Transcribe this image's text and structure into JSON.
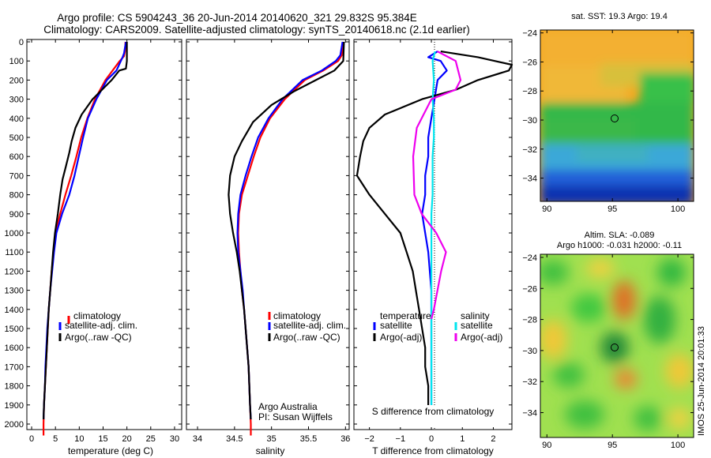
{
  "header": {
    "title_line1": "Argo profile: CS 5904243_36 20-Jun-2014 20140620_321 29.832S 95.384E",
    "title_line2": "Climatology: CARS2009. Satellite-adjusted climatology: synTS_20140618.nc (2.1d earlier)"
  },
  "credits": {
    "line1": "Argo Australia",
    "line2": "PI: Susan Wijffels"
  },
  "side_text": "IMOS 25-Jun-2014 20:01:33",
  "colors": {
    "climatology": "#ff0000",
    "satellite": "#0000ff",
    "argo": "#000000",
    "sat_salinity": "#00e5ee",
    "argo_salinity": "#ee00ee"
  },
  "chart_data": [
    {
      "type": "line",
      "xlabel": "temperature (deg C)",
      "ylabel": "",
      "xlim": [
        -1,
        31.5
      ],
      "ylim": [
        2060,
        0
      ],
      "xticks": [
        0,
        5,
        10,
        15,
        20,
        25,
        30
      ],
      "yticks": [
        0,
        100,
        200,
        300,
        400,
        500,
        600,
        700,
        800,
        900,
        1000,
        1100,
        1200,
        1300,
        1400,
        1500,
        1600,
        1700,
        1800,
        1900,
        2000
      ],
      "legend": [
        "climatology",
        "satellite-adj. clim.",
        "Argo(..raw -QC)"
      ],
      "series": [
        {
          "name": "climatology",
          "color": "#ff0000",
          "points": [
            [
              19.7,
              0
            ],
            [
              19.6,
              50
            ],
            [
              19.4,
              75
            ],
            [
              18.5,
              100
            ],
            [
              15.5,
              200
            ],
            [
              13.3,
              300
            ],
            [
              11.7,
              400
            ],
            [
              10.4,
              500
            ],
            [
              9.4,
              600
            ],
            [
              8.3,
              700
            ],
            [
              7.1,
              800
            ],
            [
              6.0,
              900
            ],
            [
              5.0,
              1000
            ],
            [
              4.6,
              1100
            ],
            [
              4.2,
              1200
            ],
            [
              3.9,
              1300
            ],
            [
              3.6,
              1400
            ],
            [
              3.4,
              1500
            ],
            [
              3.2,
              1600
            ],
            [
              3.0,
              1700
            ],
            [
              2.8,
              1800
            ],
            [
              2.6,
              1900
            ],
            [
              2.5,
              2000
            ],
            [
              2.5,
              2060
            ]
          ]
        },
        {
          "name": "satellite-adj. clim.",
          "color": "#0000ff",
          "points": [
            [
              19.8,
              0
            ],
            [
              19.4,
              60
            ],
            [
              19.1,
              80
            ],
            [
              17.8,
              150
            ],
            [
              15.8,
              200
            ],
            [
              13.6,
              300
            ],
            [
              11.8,
              400
            ],
            [
              10.8,
              500
            ],
            [
              9.9,
              600
            ],
            [
              9.0,
              700
            ],
            [
              7.9,
              800
            ],
            [
              6.4,
              900
            ],
            [
              5.2,
              1000
            ],
            [
              4.7,
              1100
            ],
            [
              4.3,
              1200
            ],
            [
              3.9,
              1300
            ],
            [
              3.6,
              1400
            ],
            [
              3.3,
              1500
            ],
            [
              3.1,
              1600
            ],
            [
              2.9,
              1700
            ],
            [
              2.8,
              1800
            ],
            [
              2.6,
              1900
            ],
            [
              2.5,
              1975
            ]
          ]
        },
        {
          "name": "Argo(..raw -QC)",
          "color": "#000000",
          "points": [
            [
              20.0,
              0
            ],
            [
              20.0,
              100
            ],
            [
              19.8,
              140
            ],
            [
              18.4,
              150
            ],
            [
              16.8,
              200
            ],
            [
              14.8,
              250
            ],
            [
              12.8,
              300
            ],
            [
              10.5,
              380
            ],
            [
              9.2,
              450
            ],
            [
              8.4,
              520
            ],
            [
              7.9,
              580
            ],
            [
              7.2,
              650
            ],
            [
              6.5,
              720
            ],
            [
              6.0,
              800
            ],
            [
              5.5,
              900
            ],
            [
              4.9,
              1000
            ],
            [
              4.5,
              1100
            ],
            [
              4.2,
              1200
            ],
            [
              3.9,
              1300
            ],
            [
              3.6,
              1400
            ],
            [
              3.4,
              1500
            ],
            [
              3.2,
              1600
            ],
            [
              3.0,
              1700
            ],
            [
              2.8,
              1800
            ],
            [
              2.6,
              1900
            ],
            [
              2.5,
              1975
            ]
          ]
        }
      ]
    },
    {
      "type": "line",
      "xlabel": "salinity",
      "ylabel": "",
      "xlim": [
        33.85,
        36.05
      ],
      "ylim": [
        2060,
        0
      ],
      "xticks": [
        34,
        34.5,
        35,
        35.5,
        36
      ],
      "legend": [
        "climatology",
        "satellite-adj. clim.",
        "Argo(..raw -QC)"
      ],
      "series": [
        {
          "name": "climatology",
          "color": "#ff0000",
          "points": [
            [
              35.97,
              0
            ],
            [
              35.95,
              70
            ],
            [
              35.9,
              100
            ],
            [
              35.7,
              150
            ],
            [
              35.45,
              200
            ],
            [
              35.18,
              300
            ],
            [
              34.98,
              400
            ],
            [
              34.85,
              500
            ],
            [
              34.76,
              600
            ],
            [
              34.68,
              700
            ],
            [
              34.6,
              800
            ],
            [
              34.56,
              900
            ],
            [
              34.55,
              1000
            ],
            [
              34.56,
              1100
            ],
            [
              34.58,
              1200
            ],
            [
              34.6,
              1300
            ],
            [
              34.63,
              1400
            ],
            [
              34.65,
              1500
            ],
            [
              34.67,
              1600
            ],
            [
              34.69,
              1700
            ],
            [
              34.7,
              1800
            ],
            [
              34.71,
              1900
            ],
            [
              34.72,
              2000
            ],
            [
              34.72,
              2060
            ]
          ]
        },
        {
          "name": "satellite-adj. clim.",
          "color": "#0000ff",
          "points": [
            [
              35.96,
              0
            ],
            [
              35.93,
              70
            ],
            [
              35.87,
              100
            ],
            [
              35.68,
              150
            ],
            [
              35.42,
              200
            ],
            [
              35.15,
              300
            ],
            [
              34.96,
              400
            ],
            [
              34.82,
              500
            ],
            [
              34.73,
              600
            ],
            [
              34.65,
              700
            ],
            [
              34.58,
              800
            ],
            [
              34.55,
              900
            ],
            [
              34.54,
              1000
            ],
            [
              34.55,
              1100
            ],
            [
              34.58,
              1200
            ],
            [
              34.61,
              1300
            ],
            [
              34.63,
              1400
            ],
            [
              34.65,
              1500
            ],
            [
              34.67,
              1600
            ],
            [
              34.69,
              1700
            ],
            [
              34.7,
              1800
            ],
            [
              34.71,
              1900
            ],
            [
              34.72,
              1975
            ]
          ]
        },
        {
          "name": "Argo(..raw -QC)",
          "color": "#000000",
          "points": [
            [
              35.98,
              0
            ],
            [
              35.97,
              100
            ],
            [
              35.85,
              150
            ],
            [
              35.6,
              200
            ],
            [
              35.3,
              260
            ],
            [
              35.0,
              330
            ],
            [
              34.75,
              420
            ],
            [
              34.6,
              520
            ],
            [
              34.5,
              600
            ],
            [
              34.44,
              700
            ],
            [
              34.42,
              800
            ],
            [
              34.44,
              900
            ],
            [
              34.48,
              1000
            ],
            [
              34.53,
              1100
            ],
            [
              34.57,
              1200
            ],
            [
              34.6,
              1300
            ],
            [
              34.63,
              1400
            ],
            [
              34.65,
              1500
            ],
            [
              34.67,
              1600
            ],
            [
              34.69,
              1700
            ],
            [
              34.7,
              1800
            ],
            [
              34.71,
              1900
            ],
            [
              34.72,
              1975
            ]
          ]
        }
      ]
    },
    {
      "type": "line",
      "xlabel": "T difference from climatology",
      "top_axis_label": "S difference from climatology",
      "xlim": [
        -2.5,
        2.6
      ],
      "ylim": [
        2060,
        0
      ],
      "xticks": [
        -2,
        -1,
        0,
        1,
        2
      ],
      "top_xticks": [
        -0.5,
        -0.25,
        0,
        0.25,
        0.5
      ],
      "top_xlim": [
        -0.6375,
        0.6625
      ],
      "legend_headers": [
        "temperature",
        "salinity"
      ],
      "legend": [
        "satellite",
        "Argo(-adj)",
        "satellite",
        "Argo(-adj)"
      ],
      "series": [
        {
          "name": "satellite",
          "color": "#0000ff",
          "points": [
            [
              0.2,
              50
            ],
            [
              -0.1,
              80
            ],
            [
              0.3,
              100
            ],
            [
              0.5,
              150
            ],
            [
              0.2,
              200
            ],
            [
              0.1,
              300
            ],
            [
              0.0,
              400
            ],
            [
              -0.1,
              500
            ],
            [
              -0.1,
              600
            ],
            [
              -0.2,
              700
            ],
            [
              -0.2,
              800
            ],
            [
              -0.3,
              900
            ],
            [
              -0.2,
              1000
            ],
            [
              -0.1,
              1100
            ],
            [
              0.0,
              1300
            ],
            [
              0.0,
              1500
            ],
            [
              0.0,
              1700
            ],
            [
              0.0,
              1900
            ],
            [
              0.0,
              1975
            ]
          ]
        },
        {
          "name": "Argo(-adj)",
          "color": "#000000",
          "points": [
            [
              0.3,
              50
            ],
            [
              1.5,
              80
            ],
            [
              2.6,
              120
            ],
            [
              2.5,
              150
            ],
            [
              1.5,
              200
            ],
            [
              0.8,
              250
            ],
            [
              -0.3,
              300
            ],
            [
              -1.5,
              380
            ],
            [
              -2.0,
              450
            ],
            [
              -2.2,
              520
            ],
            [
              -2.3,
              600
            ],
            [
              -2.4,
              700
            ],
            [
              -2.0,
              800
            ],
            [
              -1.5,
              900
            ],
            [
              -1.0,
              1000
            ],
            [
              -0.8,
              1100
            ],
            [
              -0.6,
              1200
            ],
            [
              -0.5,
              1300
            ],
            [
              -0.4,
              1400
            ],
            [
              -0.3,
              1500
            ],
            [
              -0.2,
              1600
            ],
            [
              -0.2,
              1700
            ],
            [
              -0.1,
              1800
            ],
            [
              -0.1,
              1900
            ],
            [
              0.0,
              1975
            ]
          ]
        },
        {
          "name": "satellite",
          "axis": "top",
          "color": "#00e5ee",
          "points": [
            [
              0.03,
              50
            ],
            [
              0.01,
              100
            ],
            [
              0.02,
              200
            ],
            [
              0.01,
              300
            ],
            [
              0.02,
              400
            ],
            [
              0.02,
              500
            ],
            [
              0.01,
              600
            ],
            [
              0.01,
              700
            ],
            [
              0.01,
              800
            ],
            [
              0.0,
              900
            ],
            [
              0.0,
              1000
            ],
            [
              0.0,
              1100
            ],
            [
              0.0,
              1200
            ],
            [
              0.0,
              1300
            ],
            [
              0.0,
              1500
            ],
            [
              0.0,
              1700
            ],
            [
              0.0,
              1900
            ],
            [
              0.0,
              1975
            ]
          ]
        },
        {
          "name": "Argo(-adj)",
          "axis": "top",
          "color": "#ee00ee",
          "points": [
            [
              0.05,
              50
            ],
            [
              0.2,
              100
            ],
            [
              0.24,
              200
            ],
            [
              0.2,
              250
            ],
            [
              0.0,
              300
            ],
            [
              -0.12,
              450
            ],
            [
              -0.15,
              600
            ],
            [
              -0.14,
              800
            ],
            [
              -0.08,
              900
            ],
            [
              0.04,
              1000
            ],
            [
              0.12,
              1100
            ],
            [
              0.08,
              1200
            ],
            [
              0.05,
              1300
            ],
            [
              0.02,
              1400
            ],
            [
              0.0,
              1450
            ]
          ]
        }
      ]
    },
    {
      "type": "heatmap",
      "title": "sat. SST: 19.3 Argo: 19.4",
      "xlim": [
        89.5,
        101.2
      ],
      "ylim": [
        -35.6,
        -23.8
      ],
      "xticks": [
        90,
        95,
        100
      ],
      "yticks": [
        -24,
        -26,
        -28,
        -30,
        -32,
        -34
      ],
      "marker": [
        95.384,
        -29.832
      ]
    },
    {
      "type": "heatmap",
      "title_line1": "Altim. SLA: -0.089",
      "title_line2": "Argo h1000: -0.031 h2000: -0.11",
      "xlim": [
        89.5,
        101.2
      ],
      "ylim": [
        -35.6,
        -23.8
      ],
      "xticks": [
        90,
        95,
        100
      ],
      "yticks": [
        -24,
        -26,
        -28,
        -30,
        -32,
        -34
      ],
      "marker": [
        95.384,
        -29.832
      ]
    }
  ]
}
